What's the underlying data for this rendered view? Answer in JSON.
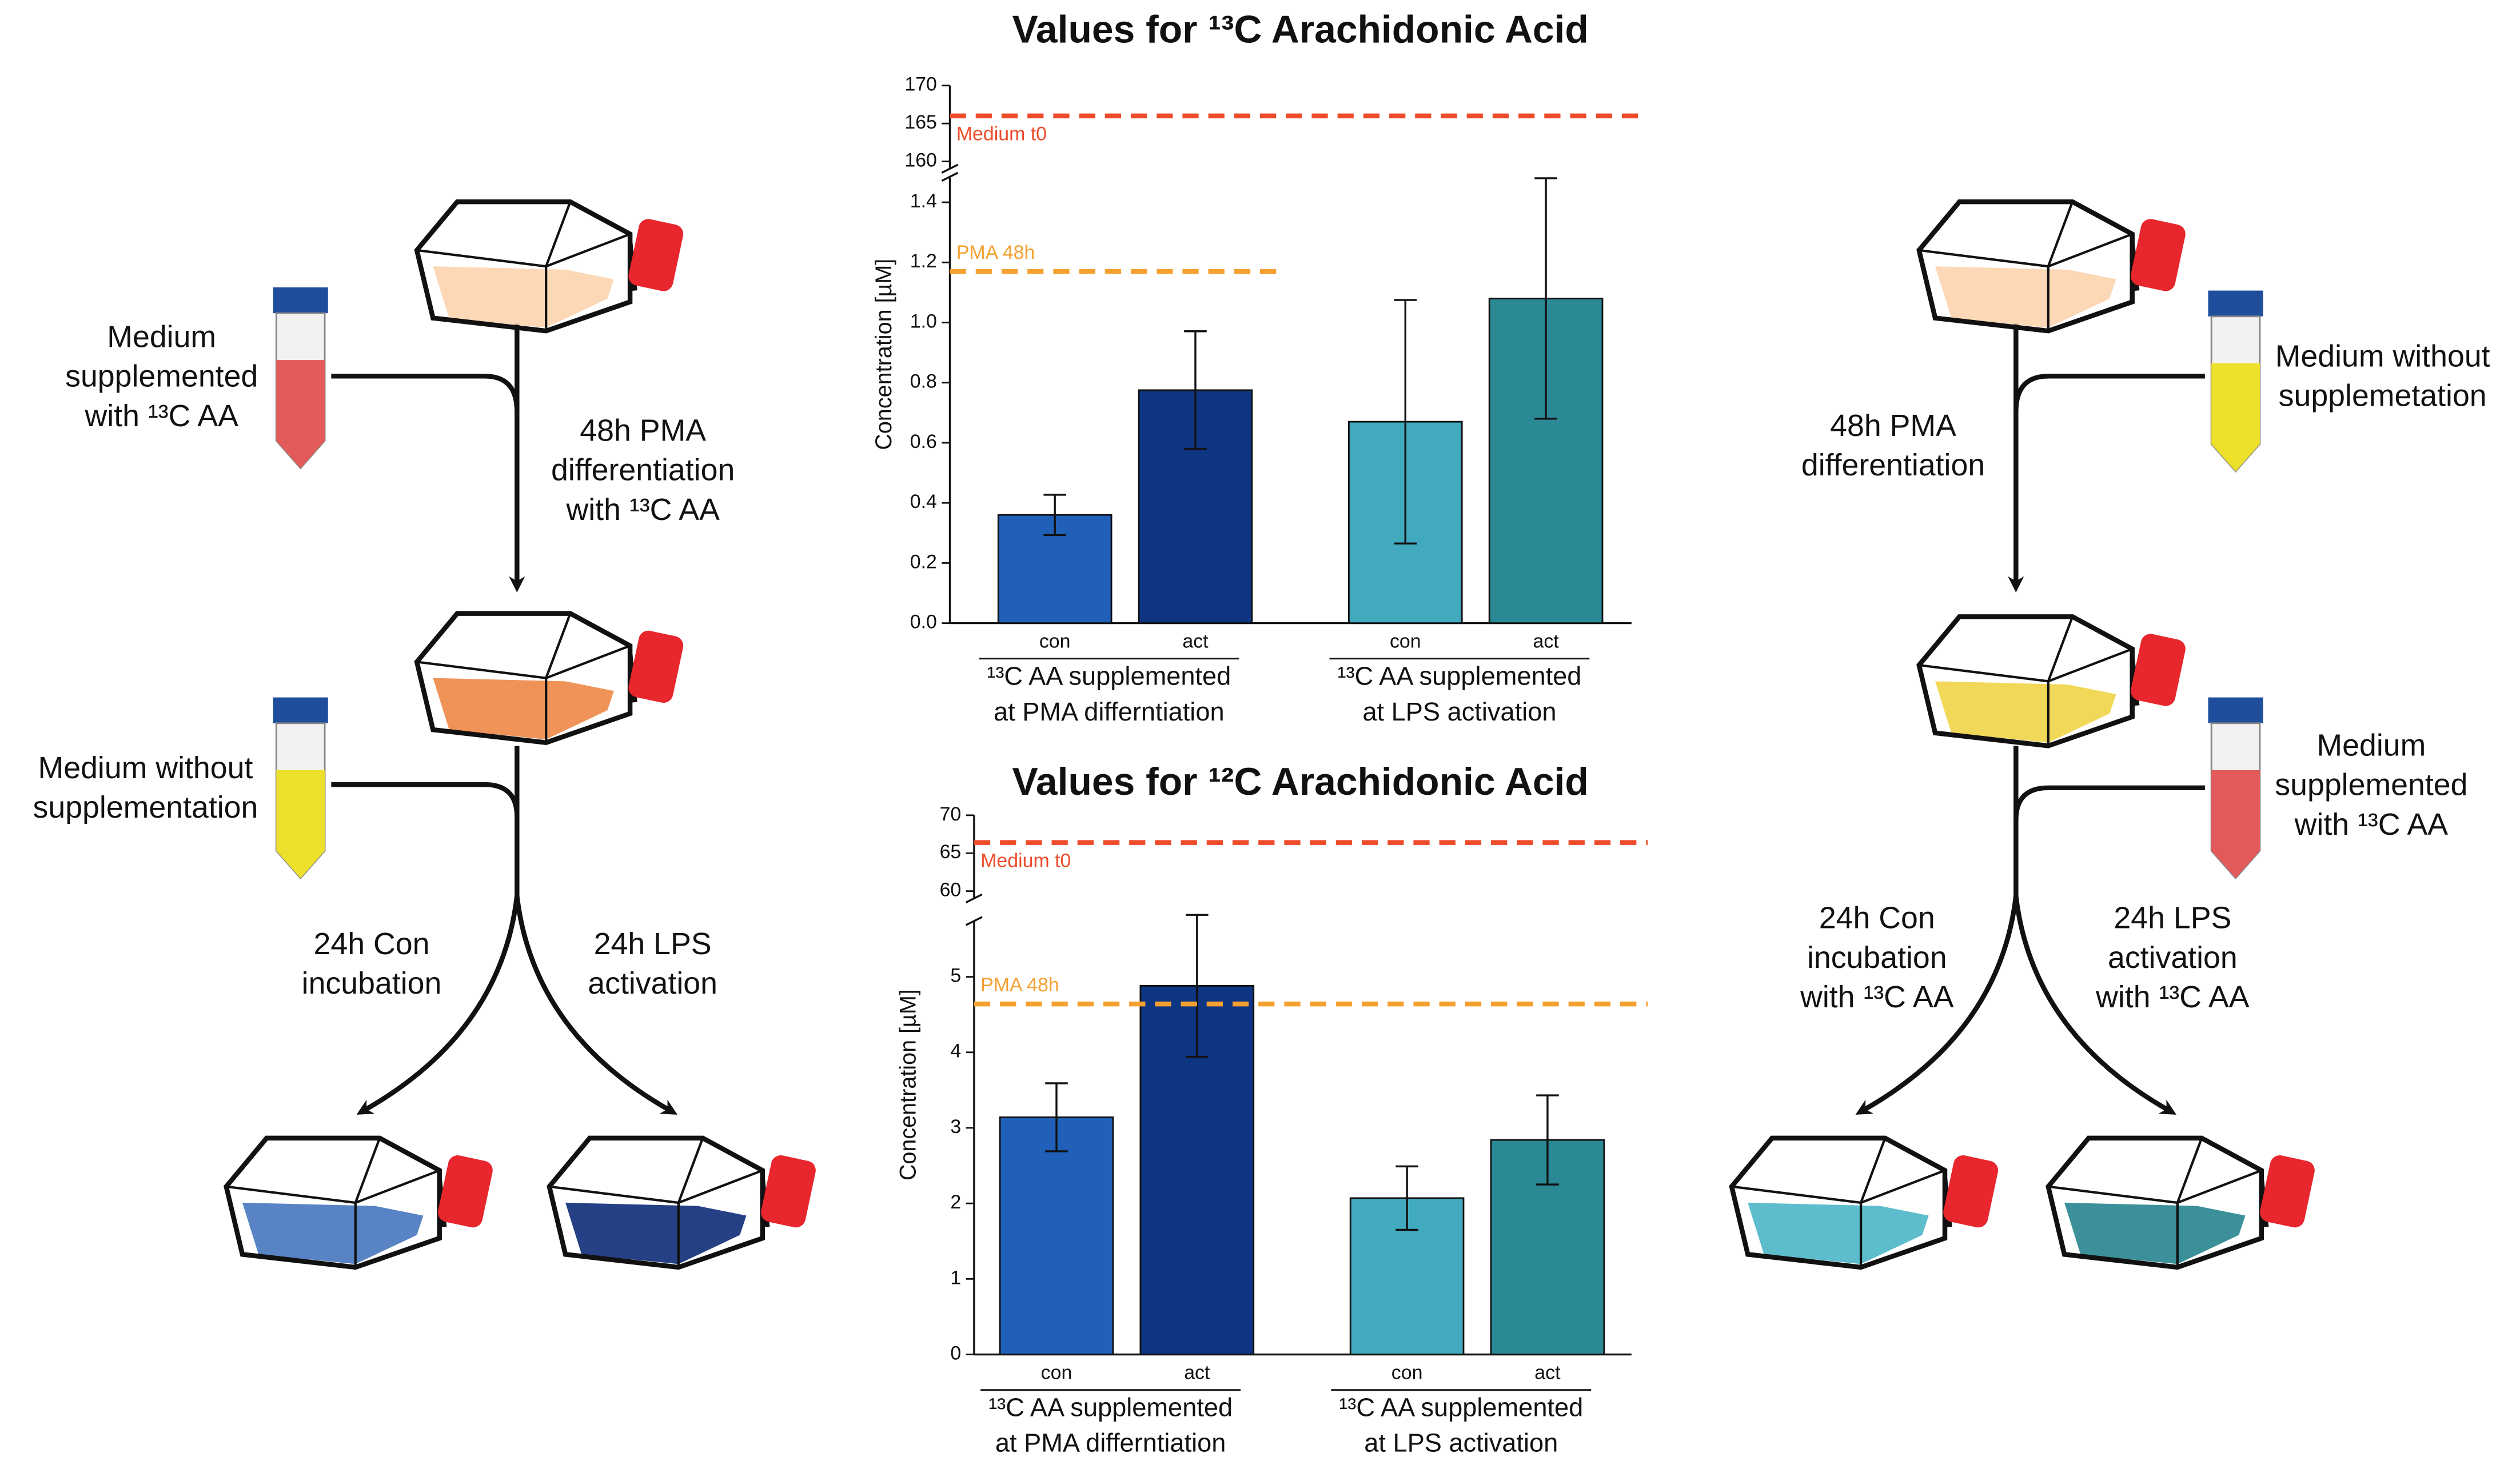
{
  "chart_data": [
    {
      "type": "bar",
      "title": "Values for ¹³C Arachidonic Acid",
      "y_label": "Concentration [µM]",
      "categories": [
        "con",
        "act",
        "con",
        "act"
      ],
      "values": [
        0.36,
        0.775,
        0.67,
        1.08
      ],
      "errors": [
        0.067,
        0.196,
        0.405,
        0.4
      ],
      "colors": [
        "#2160b9",
        "#0e3582",
        "#41aabf",
        "#2b8895"
      ],
      "groups": [
        [
          "¹³C AA supplemented",
          "at PMA differntiation"
        ],
        [
          "¹³C AA supplemented",
          "at LPS activation"
        ]
      ],
      "ylim": [
        0,
        1.45
      ],
      "yticks": [
        {
          "value": 0,
          "label": "0.0"
        },
        0.2,
        0.4,
        0.6,
        0.8,
        {
          "value": 1,
          "label": "1.0"
        },
        1.2,
        1.4
      ],
      "ylim_break": [
        160,
        170
      ],
      "yticks_break": [
        160,
        165,
        170
      ],
      "reference_lines": [
        {
          "label": "Medium t0",
          "value": 166,
          "axis": "break",
          "color": "#ee4b2b"
        },
        {
          "label": "PMA 48h",
          "value": 1.17,
          "axis": "lower",
          "color": "#f5a030"
        }
      ]
    },
    {
      "type": "bar",
      "title": "Values for ¹²C Arachidonic Acid",
      "y_label": "Concentration [µM]",
      "categories": [
        "con",
        "act",
        "con",
        "act"
      ],
      "values": [
        3.14,
        4.88,
        2.07,
        2.84
      ],
      "errors": [
        0.45,
        0.94,
        0.42,
        0.59
      ],
      "colors": [
        "#2160b9",
        "#0e3582",
        "#41aabf",
        "#2b8895"
      ],
      "groups": [
        [
          "¹³C AA supplemented",
          "at PMA differntiation"
        ],
        [
          "¹³C AA supplemented",
          "at LPS activation"
        ]
      ],
      "ylim": [
        0,
        5.6
      ],
      "yticks": [
        0,
        1,
        2,
        3,
        4,
        5
      ],
      "ylim_break": [
        60,
        70
      ],
      "yticks_break": [
        60,
        65,
        70
      ],
      "reference_lines": [
        {
          "label": "Medium t0",
          "value": 66.4,
          "axis": "break",
          "color": "#ee4b2b"
        },
        {
          "label": "PMA 48h",
          "value": 4.64,
          "axis": "lower",
          "color": "#f5a030"
        }
      ]
    }
  ],
  "diagram": {
    "left": {
      "tube_1": [
        "Medium",
        "supplemented",
        "with ¹³C AA"
      ],
      "step_1": [
        "48h PMA",
        "differentiation",
        "with ¹³C AA"
      ],
      "tube_2": [
        "Medium without",
        "supplementation"
      ],
      "branch_con": [
        "24h Con",
        "incubation"
      ],
      "branch_lps": [
        "24h LPS",
        "activation"
      ]
    },
    "right": {
      "tube_1": [
        "Medium without",
        "supplemetation"
      ],
      "step_1": [
        "48h PMA",
        "differentiation"
      ],
      "tube_2": [
        "Medium",
        "supplemented",
        "with ¹³C AA"
      ],
      "branch_con": [
        "24h Con",
        "incubation",
        "with ¹³C AA"
      ],
      "branch_lps": [
        "24h LPS",
        "activation",
        "with ¹³C AA"
      ]
    }
  }
}
